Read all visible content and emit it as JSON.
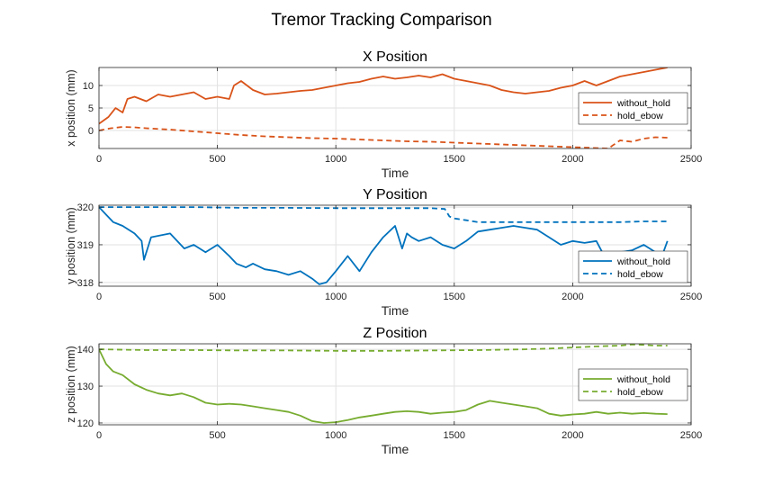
{
  "figure": {
    "title": "Tremor Tracking Comparison"
  },
  "colors": {
    "x": "#D95319",
    "y": "#0072BD",
    "z": "#77AC30",
    "grid": "#e1e1e1",
    "axis": "#262626"
  },
  "chart_data": [
    {
      "type": "line",
      "title": "X Position",
      "xlabel": "Time",
      "ylabel": "x position (mm)",
      "xlim": [
        0,
        2500
      ],
      "ylim": [
        -4,
        14
      ],
      "xticks": [
        0,
        500,
        1000,
        1500,
        2000,
        2500
      ],
      "yticks": [
        0,
        5,
        10
      ],
      "grid": true,
      "legend": "right",
      "color_key": "x",
      "series": [
        {
          "name": "without_hold",
          "style": "solid",
          "x": [
            0,
            40,
            70,
            100,
            120,
            150,
            200,
            250,
            300,
            350,
            400,
            450,
            500,
            550,
            570,
            600,
            650,
            700,
            750,
            800,
            850,
            900,
            950,
            1000,
            1050,
            1100,
            1150,
            1200,
            1250,
            1300,
            1350,
            1400,
            1450,
            1500,
            1550,
            1600,
            1650,
            1700,
            1750,
            1800,
            1850,
            1900,
            1950,
            2000,
            2050,
            2100,
            2150,
            2200,
            2250,
            2300,
            2350,
            2400
          ],
          "y": [
            1.5,
            3,
            5,
            4,
            7,
            7.5,
            6.5,
            8,
            7.5,
            8,
            8.5,
            7,
            7.5,
            7,
            10,
            11,
            9,
            8,
            8.2,
            8.5,
            8.8,
            9,
            9.5,
            10,
            10.5,
            10.8,
            11.5,
            12,
            11.5,
            11.8,
            12.2,
            11.8,
            12.5,
            11.5,
            11,
            10.5,
            10,
            9,
            8.5,
            8.2,
            8.5,
            8.8,
            9.5,
            10,
            11,
            10,
            11,
            12,
            12.5,
            13,
            13.5,
            14
          ]
        },
        {
          "name": "hold_ebow",
          "style": "dashed",
          "x": [
            0,
            50,
            100,
            150,
            200,
            300,
            400,
            500,
            600,
            700,
            800,
            900,
            1000,
            1100,
            1200,
            1300,
            1400,
            1500,
            1600,
            1700,
            1800,
            1900,
            2000,
            2100,
            2150,
            2200,
            2250,
            2300,
            2350,
            2400
          ],
          "y": [
            0,
            0.5,
            0.8,
            0.7,
            0.5,
            0.2,
            -0.2,
            -0.6,
            -1,
            -1.3,
            -1.5,
            -1.7,
            -1.8,
            -2,
            -2.2,
            -2.4,
            -2.5,
            -2.7,
            -2.9,
            -3.1,
            -3.3,
            -3.5,
            -3.7,
            -3.9,
            -4,
            -2.2,
            -2.5,
            -1.8,
            -1.5,
            -1.6
          ]
        }
      ]
    },
    {
      "type": "line",
      "title": "Y Position",
      "xlabel": "Time",
      "ylabel": "y position (mm)",
      "xlim": [
        0,
        2500
      ],
      "ylim": [
        317.9,
        320.05
      ],
      "xticks": [
        0,
        500,
        1000,
        1500,
        2000,
        2500
      ],
      "yticks": [
        318,
        319,
        320
      ],
      "grid": true,
      "legend": "right",
      "color_key": "y",
      "series": [
        {
          "name": "without_hold",
          "style": "solid",
          "x": [
            0,
            30,
            60,
            100,
            150,
            180,
            190,
            220,
            260,
            300,
            330,
            360,
            400,
            450,
            500,
            550,
            580,
            620,
            650,
            700,
            750,
            800,
            850,
            900,
            930,
            960,
            1000,
            1050,
            1100,
            1150,
            1200,
            1250,
            1280,
            1300,
            1320,
            1350,
            1400,
            1450,
            1500,
            1550,
            1600,
            1650,
            1700,
            1750,
            1800,
            1850,
            1900,
            1950,
            2000,
            2050,
            2100,
            2150,
            2200,
            2250,
            2300,
            2350,
            2380,
            2400
          ],
          "y": [
            320,
            319.8,
            319.6,
            319.5,
            319.3,
            319.1,
            318.6,
            319.2,
            319.25,
            319.3,
            319.1,
            318.9,
            319,
            318.8,
            319,
            318.7,
            318.5,
            318.4,
            318.5,
            318.35,
            318.3,
            318.2,
            318.3,
            318.1,
            317.95,
            318,
            318.3,
            318.7,
            318.3,
            318.8,
            319.2,
            319.5,
            318.9,
            319.3,
            319.2,
            319.1,
            319.2,
            319,
            318.9,
            319.1,
            319.35,
            319.4,
            319.45,
            319.5,
            319.45,
            319.4,
            319.2,
            319,
            319.1,
            319.05,
            319.1,
            318.5,
            318.8,
            318.85,
            319,
            318.8,
            318.75,
            319.1
          ]
        },
        {
          "name": "hold_ebow",
          "style": "dashed",
          "x": [
            0,
            200,
            400,
            600,
            800,
            1000,
            1200,
            1400,
            1460,
            1480,
            1500,
            1550,
            1600,
            1700,
            1800,
            1900,
            2000,
            2100,
            2200,
            2300,
            2400
          ],
          "y": [
            320,
            320,
            320,
            319.98,
            319.98,
            319.97,
            319.97,
            319.97,
            319.95,
            319.75,
            319.7,
            319.65,
            319.6,
            319.6,
            319.6,
            319.6,
            319.6,
            319.6,
            319.6,
            319.62,
            319.62
          ]
        }
      ]
    },
    {
      "type": "line",
      "title": "Z Position",
      "xlabel": "Time",
      "ylabel": "z position (mm)",
      "xlim": [
        0,
        2500
      ],
      "ylim": [
        119.5,
        141.5
      ],
      "xticks": [
        0,
        500,
        1000,
        1500,
        2000,
        2500
      ],
      "yticks": [
        120,
        130,
        140
      ],
      "grid": true,
      "legend": "right",
      "color_key": "z",
      "series": [
        {
          "name": "without_hold",
          "style": "solid",
          "x": [
            0,
            30,
            60,
            100,
            150,
            200,
            250,
            300,
            350,
            400,
            450,
            500,
            550,
            600,
            650,
            700,
            750,
            800,
            850,
            900,
            950,
            1000,
            1050,
            1100,
            1150,
            1200,
            1250,
            1300,
            1350,
            1400,
            1450,
            1500,
            1550,
            1600,
            1650,
            1700,
            1750,
            1800,
            1850,
            1900,
            1950,
            2000,
            2050,
            2100,
            2150,
            2200,
            2250,
            2300,
            2350,
            2400
          ],
          "y": [
            140,
            136,
            134,
            133,
            130.5,
            129,
            128,
            127.5,
            128,
            127,
            125.5,
            125,
            125.2,
            125,
            124.5,
            124,
            123.5,
            123,
            122,
            120.5,
            120,
            120.2,
            120.8,
            121.5,
            122,
            122.5,
            123,
            123.2,
            123,
            122.5,
            122.8,
            123,
            123.5,
            125,
            126,
            125.5,
            125,
            124.5,
            124,
            122.5,
            122,
            122.3,
            122.5,
            123,
            122.5,
            122.8,
            122.5,
            122.7,
            122.5,
            122.4
          ]
        },
        {
          "name": "hold_ebow",
          "style": "dashed",
          "x": [
            0,
            200,
            400,
            600,
            800,
            1000,
            1200,
            1400,
            1600,
            1800,
            1900,
            2000,
            2100,
            2200,
            2250,
            2300,
            2350,
            2400
          ],
          "y": [
            140,
            139.8,
            139.8,
            139.7,
            139.7,
            139.6,
            139.6,
            139.7,
            139.8,
            140,
            140.2,
            140.5,
            140.8,
            141,
            141.3,
            141.2,
            141,
            141
          ]
        }
      ]
    }
  ]
}
